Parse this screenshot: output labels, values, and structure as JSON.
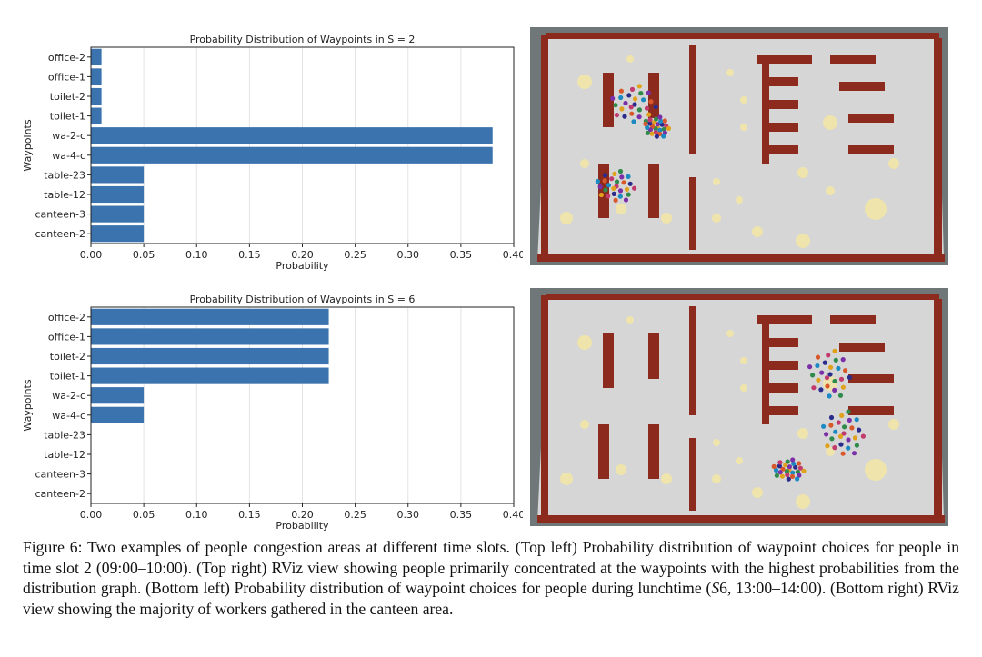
{
  "chart_data": [
    {
      "type": "bar",
      "orientation": "horizontal",
      "title": "Probability Distribution of Waypoints in S = 2",
      "xlabel": "Probability",
      "ylabel": "Waypoints",
      "xlim": [
        0,
        0.4
      ],
      "xticks": [
        "0.00",
        "0.05",
        "0.10",
        "0.15",
        "0.20",
        "0.25",
        "0.30",
        "0.35",
        "0.40"
      ],
      "grid": "vertical",
      "bar_color": "#3a73ad",
      "categories": [
        "office-2",
        "office-1",
        "toilet-2",
        "toilet-1",
        "wa-2-c",
        "wa-4-c",
        "table-23",
        "table-12",
        "canteen-3",
        "canteen-2"
      ],
      "values": [
        0.01,
        0.01,
        0.01,
        0.01,
        0.38,
        0.38,
        0.05,
        0.05,
        0.05,
        0.05
      ]
    },
    {
      "type": "bar",
      "orientation": "horizontal",
      "title": "Probability Distribution of Waypoints in S = 6",
      "xlabel": "Probability",
      "ylabel": "Waypoints",
      "xlim": [
        0,
        0.4
      ],
      "xticks": [
        "0.00",
        "0.05",
        "0.10",
        "0.15",
        "0.20",
        "0.25",
        "0.30",
        "0.35",
        "0.40"
      ],
      "grid": "vertical",
      "bar_color": "#3a73ad",
      "categories": [
        "office-2",
        "office-1",
        "toilet-2",
        "toilet-1",
        "wa-2-c",
        "wa-4-c",
        "table-23",
        "table-12",
        "canteen-3",
        "canteen-2"
      ],
      "values": [
        0.225,
        0.225,
        0.225,
        0.225,
        0.05,
        0.05,
        0,
        0,
        0,
        0
      ]
    }
  ],
  "colors": {
    "floor": "#d6d6d6",
    "wall": "#8c2a1e",
    "waypoint": "#f2e6a6",
    "background": "#6f7778"
  },
  "caption": {
    "p1": "Figure 6: Two examples of people congestion areas at different time slots. (Top left) Probability distribution of waypoint choices for people in time slot 2 (09:00–10:00). (Top right) RViz view showing people primarily concentrated at the waypoints with the highest probabilities from the distribution graph. (Bottom left) Probability distribution of waypoint choices for people during lunchtime (",
    "s6": "S",
    "s6n": "6",
    "p2": ", 13:00–14:00). (Bottom right) RViz view showing the majority of workers gathered in the canteen area."
  }
}
